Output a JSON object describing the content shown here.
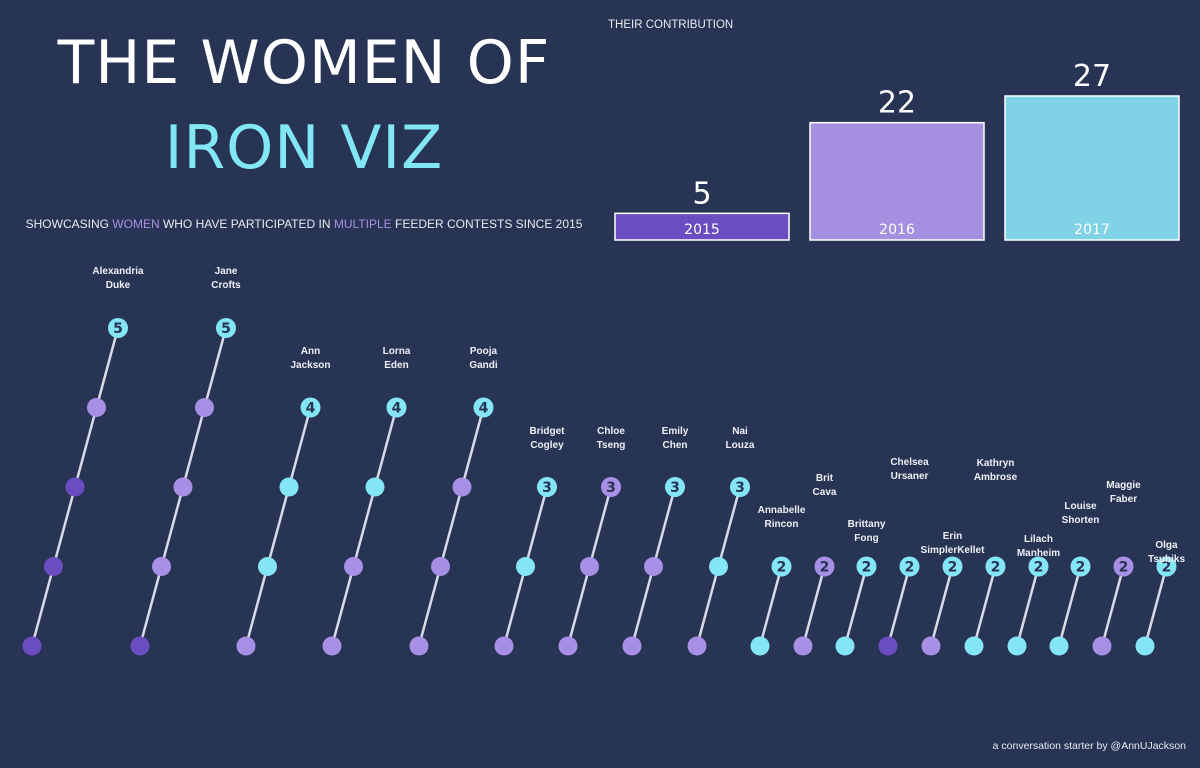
{
  "header": {
    "title_line1": "THE WOMEN OF",
    "title_line2": "IRON VIZ",
    "subtitle": {
      "part1": "SHOWCASING ",
      "highlight1": "WOMEN",
      "part2": " WHO HAVE PARTICIPATED IN ",
      "highlight2": "MULTIPLE",
      "part3": " FEEDER CONTESTS SINCE 2015"
    }
  },
  "contribution_label": "THEIR CONTRIBUTION",
  "credit": "a conversation starter by @AnnUJackson",
  "colors": {
    "background": "#283454",
    "dark_purple": "#6a4dc0",
    "light_purple": "#a88fe6",
    "cyan": "#84e5f6",
    "bar_2015": "#6a4dc0",
    "bar_2016": "#a58fe0",
    "bar_2017": "#80d3e6",
    "line": "#d8dbe6"
  },
  "chart_data": [
    {
      "type": "bar",
      "categories": [
        "2015",
        "2016",
        "2017"
      ],
      "values": [
        5,
        22,
        27
      ],
      "ylim": [
        0,
        27
      ]
    },
    {
      "type": "line",
      "series": [
        {
          "label": "Alexandria Duke",
          "name_lines": [
            "Alexandria",
            "Duke"
          ],
          "total": 5,
          "dots": [
            "dark_purple",
            "dark_purple",
            "dark_purple",
            "light_purple",
            "cyan"
          ]
        },
        {
          "label": "Jane Crofts",
          "name_lines": [
            "Jane",
            "Crofts"
          ],
          "total": 5,
          "dots": [
            "dark_purple",
            "light_purple",
            "light_purple",
            "light_purple",
            "cyan"
          ]
        },
        {
          "label": "Ann Jackson",
          "name_lines": [
            "Ann",
            "Jackson"
          ],
          "total": 4,
          "dots": [
            "light_purple",
            "cyan",
            "cyan",
            "cyan"
          ]
        },
        {
          "label": "Lorna Eden",
          "name_lines": [
            "Lorna",
            "Eden"
          ],
          "total": 4,
          "dots": [
            "light_purple",
            "light_purple",
            "cyan",
            "cyan"
          ]
        },
        {
          "label": "Pooja Gandi",
          "name_lines": [
            "Pooja",
            "Gandi"
          ],
          "total": 4,
          "dots": [
            "light_purple",
            "light_purple",
            "light_purple",
            "cyan"
          ]
        },
        {
          "label": "Bridget Cogley",
          "name_lines": [
            "Bridget",
            "Cogley"
          ],
          "total": 3,
          "dots": [
            "light_purple",
            "cyan",
            "cyan"
          ]
        },
        {
          "label": "Chloe Tseng",
          "name_lines": [
            "Chloe",
            "Tseng"
          ],
          "total": 3,
          "dots": [
            "light_purple",
            "light_purple",
            "light_purple"
          ]
        },
        {
          "label": "Emily Chen",
          "name_lines": [
            "Emily",
            "Chen"
          ],
          "total": 3,
          "dots": [
            "light_purple",
            "light_purple",
            "cyan"
          ]
        },
        {
          "label": "Nai Louza",
          "name_lines": [
            "Nai",
            "Louza"
          ],
          "total": 3,
          "dots": [
            "light_purple",
            "cyan",
            "cyan"
          ]
        },
        {
          "label": "Annabelle Rincon",
          "name_lines": [
            "Annabelle",
            "Rincon"
          ],
          "total": 2,
          "dots": [
            "cyan",
            "cyan"
          ]
        },
        {
          "label": "Brit Cava",
          "name_lines": [
            "Brit",
            "Cava"
          ],
          "total": 2,
          "dots": [
            "light_purple",
            "light_purple"
          ]
        },
        {
          "label": "Brittany Fong",
          "name_lines": [
            "Brittany",
            "Fong"
          ],
          "total": 2,
          "dots": [
            "cyan",
            "cyan"
          ]
        },
        {
          "label": "Chelsea Ursaner",
          "name_lines": [
            "Chelsea",
            "Ursaner"
          ],
          "total": 2,
          "dots": [
            "dark_purple",
            "cyan"
          ]
        },
        {
          "label": "Erin SimplerKellet",
          "name_lines": [
            "Erin",
            "SimplerKellet"
          ],
          "total": 2,
          "dots": [
            "light_purple",
            "cyan"
          ]
        },
        {
          "label": "Kathryn Ambrose",
          "name_lines": [
            "Kathryn",
            "Ambrose"
          ],
          "total": 2,
          "dots": [
            "cyan",
            "cyan"
          ]
        },
        {
          "label": "Lilach Manheim",
          "name_lines": [
            "Lilach",
            "Manheim"
          ],
          "total": 2,
          "dots": [
            "cyan",
            "cyan"
          ]
        },
        {
          "label": "Louise Shorten",
          "name_lines": [
            "Louise",
            "Shorten"
          ],
          "total": 2,
          "dots": [
            "cyan",
            "cyan"
          ]
        },
        {
          "label": "Maggie Faber",
          "name_lines": [
            "Maggie",
            "Faber"
          ],
          "total": 2,
          "dots": [
            "light_purple",
            "light_purple"
          ]
        },
        {
          "label": "Olga Tsubiks",
          "name_lines": [
            "Olga",
            "Tsubiks"
          ],
          "total": 2,
          "dots": [
            "cyan",
            "cyan"
          ]
        }
      ]
    }
  ]
}
